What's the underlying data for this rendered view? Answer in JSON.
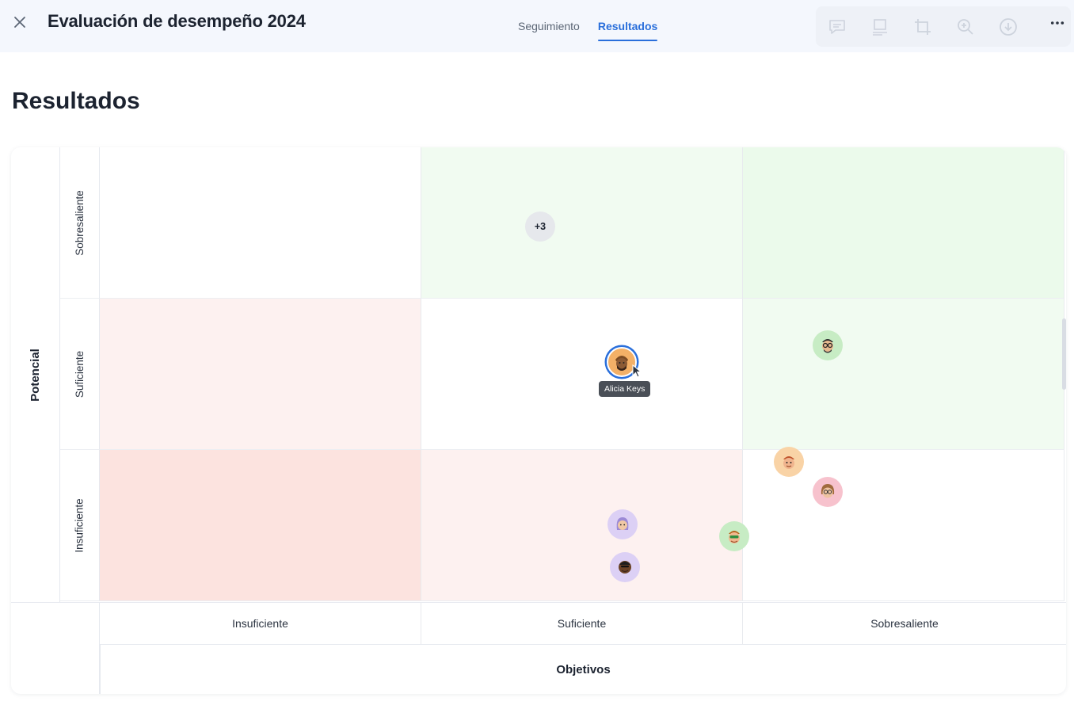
{
  "header": {
    "title": "Evaluación de desempeño 2024",
    "tabs": [
      {
        "label": "Seguimiento",
        "active": false
      },
      {
        "label": "Resultados",
        "active": true
      }
    ],
    "toolbar_icons": [
      "comment-icon",
      "sidebar-layout-icon",
      "crop-icon",
      "zoom-in-icon",
      "download-icon"
    ],
    "more_icon": "more-horizontal-icon"
  },
  "main": {
    "title": "Resultados",
    "matrix": {
      "y_axis_title": "Potencial",
      "x_axis_title": "Objetivos",
      "rows": [
        "Sobresaliente",
        "Suficiente",
        "Insuficiente"
      ],
      "columns": [
        "Insuficiente",
        "Suficiente",
        "Sobresaliente"
      ],
      "cell_colors": [
        [
          "#ffffff",
          "#f1fbf1",
          "#ebfaeb"
        ],
        [
          "#fdf1f0",
          "#ffffff",
          "#f1fbf1"
        ],
        [
          "#fce3df",
          "#fdf1f0",
          "#ffffff"
        ]
      ],
      "overflow_badge": "+3",
      "selected_person": "Alicia Keys",
      "avatar_colors": {
        "selected": "#f3b067",
        "green": "#c7ecc4",
        "orange": "#f9d3a6",
        "pink": "#f7c2cd",
        "purple": "#dcd0f5"
      }
    }
  }
}
